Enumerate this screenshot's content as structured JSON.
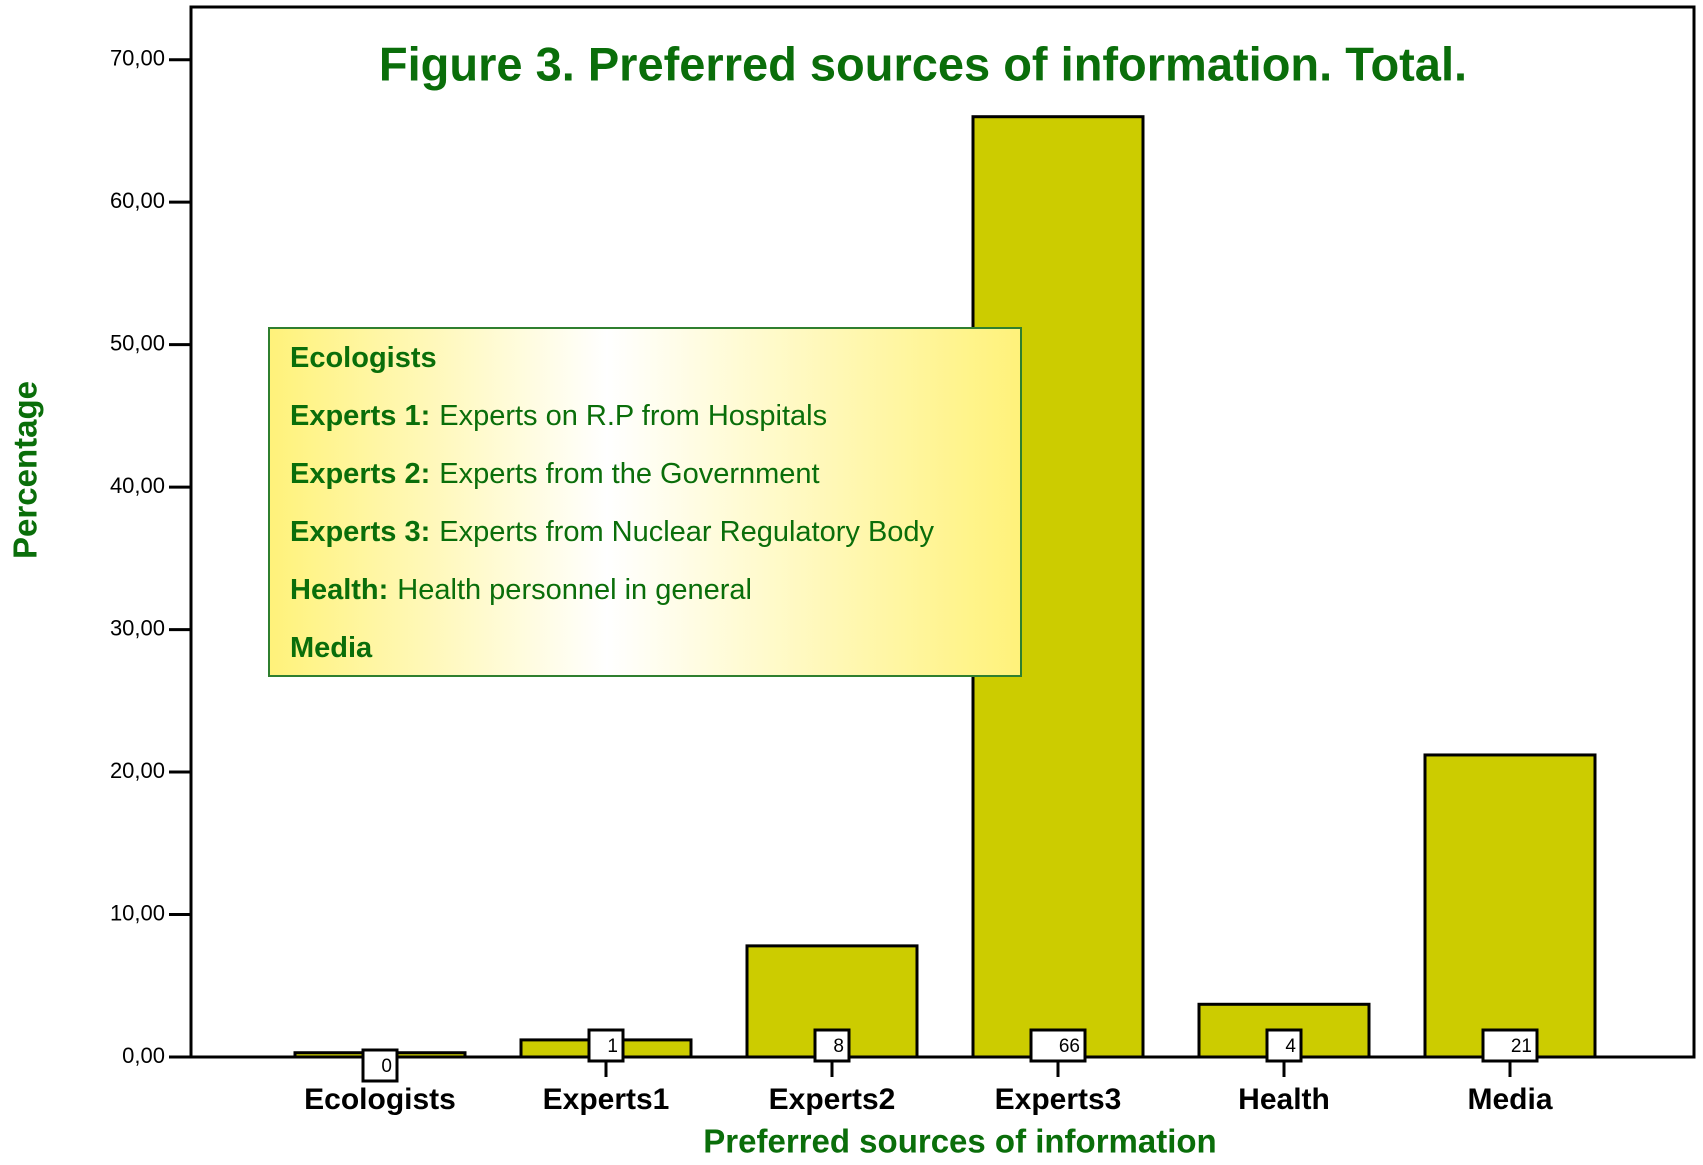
{
  "chart_data": {
    "type": "bar",
    "title": "Figure 3. Preferred sources of information. Total.",
    "x_label": "Preferred sources of information",
    "y_label": "Percentage",
    "categories": [
      "Ecologists",
      "Experts1",
      "Experts2",
      "Experts3",
      "Health",
      "Media"
    ],
    "values": [
      0.3,
      1.2,
      7.8,
      66,
      3.7,
      21.2
    ],
    "value_labels": [
      "0",
      "1",
      "8",
      "66",
      "4",
      "21"
    ],
    "color": "#cccc00",
    "ylim": [
      0,
      73.7
    ],
    "yticks": [
      {
        "value": 0,
        "label": "0,00"
      },
      {
        "value": 10,
        "label": "10,00"
      },
      {
        "value": 20,
        "label": "20,00"
      },
      {
        "value": 30,
        "label": "30,00"
      },
      {
        "value": 40,
        "label": "40,00"
      },
      {
        "value": 50,
        "label": "50,00"
      },
      {
        "value": 60,
        "label": "60,00"
      },
      {
        "value": 70,
        "label": "70,00"
      }
    ],
    "notes": [
      {
        "term": "Ecologists"
      },
      {
        "term": "Experts 1:",
        "text": "Experts on R.P from Hospitals"
      },
      {
        "term": "Experts 2:",
        "text": "Experts from the Government"
      },
      {
        "term": "Experts 3:",
        "text": "Experts from Nuclear Regulatory Body"
      },
      {
        "term": "Health:",
        "text": "Health personnel in general"
      },
      {
        "term": "Media"
      }
    ]
  }
}
